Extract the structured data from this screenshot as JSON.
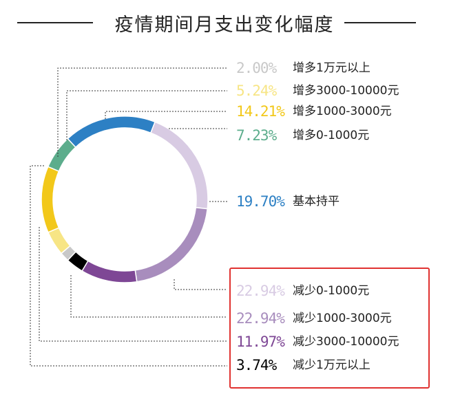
{
  "title": "疫情期间月支出变化幅度",
  "chart_data": {
    "type": "pie",
    "title": "疫情期间月支出变化幅度",
    "slices": [
      {
        "label": "增多1万元以上",
        "value": 2.0,
        "value_text": "2.00%",
        "color": "#c8c8c8"
      },
      {
        "label": "增多3000-10000元",
        "value": 5.24,
        "value_text": "5.24%",
        "color": "#f7e585"
      },
      {
        "label": "增多1000-3000元",
        "value": 14.21,
        "value_text": "14.21%",
        "color": "#f2c81a"
      },
      {
        "label": "增多0-1000元",
        "value": 7.23,
        "value_text": "7.23%",
        "color": "#5cad8c"
      },
      {
        "label": "基本持平",
        "value": 19.7,
        "value_text": "19.70%",
        "color": "#2d80c4"
      },
      {
        "label": "减少0-1000元",
        "value": 22.94,
        "value_text": "22.94%",
        "color": "#d8cbe3"
      },
      {
        "label": "减少1000-3000元",
        "value": 22.94,
        "value_text": "22.94%",
        "color": "#a88dbd"
      },
      {
        "label": "减少3000-10000元",
        "value": 11.97,
        "value_text": "11.97%",
        "color": "#7e4795"
      },
      {
        "label": "减少1万元以上",
        "value": 3.74,
        "value_text": "3.74%",
        "color": "#000000"
      }
    ],
    "legend_position": "right",
    "highlight": "decrease categories boxed in red"
  },
  "colors": {
    "highlight_border": "#e0312f",
    "leader_line": "#333333"
  }
}
